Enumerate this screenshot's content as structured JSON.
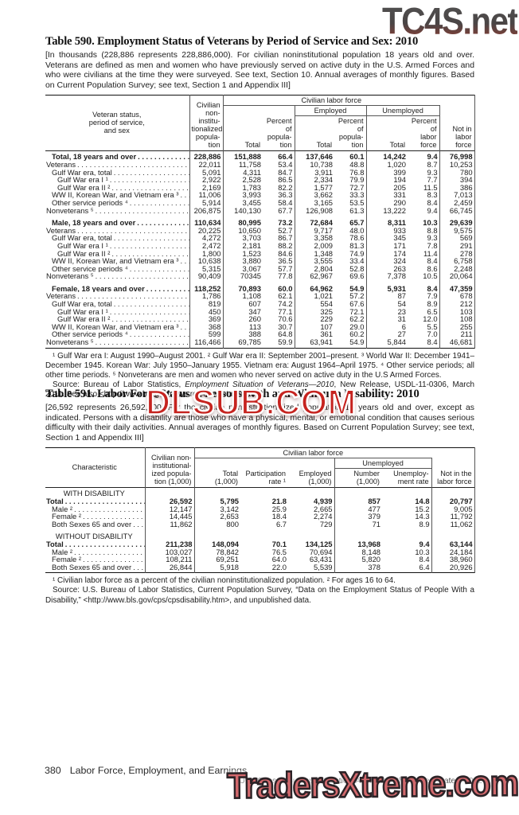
{
  "watermarks": {
    "top": "TC4S.net",
    "middle": "DLSUB.COM",
    "bottom": "TradersXtreme.com"
  },
  "t590": {
    "title": "Table 590. Employment Status of Veterans by Period of Service and Sex: 2010",
    "headnote": "[In thousands (228,886 represents 228,886,000). For civilian noninstitutional population 18 years old and over. Veterans are defined as men and women who have previously served on active duty in the U.S. Armed Forces and who were civilians at the time they were surveyed. See text, Section 10. Annual averages of monthly figures. Based on Current Population Survey; see text, Section 1 and Appendix III]",
    "header": {
      "stub": "Veteran status,\nperiod of service,\nand sex",
      "pop": "Civilian\nnon-\ninstitu-\ntionalized\npopula-\ntion",
      "clf": "Civilian labor force",
      "total": "Total",
      "pct_pop": "Percent\nof\npopula-\ntion",
      "employed": "Employed",
      "emp_total": "Total",
      "emp_pct": "Percent\nof\npopula-\ntion",
      "unemployed": "Unemployed",
      "un_total": "Total",
      "un_pct": "Percent\nof\nlabor\nforce",
      "not_in_lf": "Not in\nlabor\nforce"
    },
    "sections": [
      {
        "rows": [
          {
            "label": "Total, 18 years and over",
            "indent": 1,
            "bold": true,
            "values": [
              "228,886",
              "151,888",
              "66.4",
              "137,646",
              "60.1",
              "14,242",
              "9.4",
              "76,998"
            ]
          },
          {
            "label": "Veterans",
            "indent": 0,
            "values": [
              "22,011",
              "11,758",
              "53.4",
              "10,738",
              "48.8",
              "1,020",
              "8.7",
              "10,253"
            ]
          },
          {
            "label": "Gulf War era, total",
            "indent": 1,
            "values": [
              "5,091",
              "4,311",
              "84.7",
              "3,911",
              "76.8",
              "399",
              "9.3",
              "780"
            ]
          },
          {
            "label": "Gulf War era I ¹",
            "indent": 2,
            "values": [
              "2,922",
              "2,528",
              "86.5",
              "2,334",
              "79.9",
              "194",
              "7.7",
              "394"
            ]
          },
          {
            "label": "Gulf War era II ²",
            "indent": 2,
            "values": [
              "2,169",
              "1,783",
              "82.2",
              "1,577",
              "72.7",
              "205",
              "11.5",
              "386"
            ]
          },
          {
            "label": "WW II, Korean War, and Vietnam era ³",
            "indent": 1,
            "values": [
              "11,006",
              "3,993",
              "36.3",
              "3,662",
              "33.3",
              "331",
              "8.3",
              "7,013"
            ]
          },
          {
            "label": "Other service periods ⁴",
            "indent": 1,
            "values": [
              "5,914",
              "3,455",
              "58.4",
              "3,165",
              "53.5",
              "290",
              "8.4",
              "2,459"
            ]
          },
          {
            "label": "Nonveterans ⁵",
            "indent": 0,
            "values": [
              "206,875",
              "140,130",
              "67.7",
              "126,908",
              "61.3",
              "13,222",
              "9.4",
              "66,745"
            ]
          }
        ]
      },
      {
        "gap": true,
        "rows": [
          {
            "label": "Male, 18 years and over",
            "indent": 1,
            "bold": true,
            "values": [
              "110,634",
              "80,995",
              "73.2",
              "72,684",
              "65.7",
              "8,311",
              "10.3",
              "29,639"
            ]
          },
          {
            "label": "Veterans",
            "indent": 0,
            "values": [
              "20,225",
              "10,650",
              "52.7",
              "9,717",
              "48.0",
              "933",
              "8.8",
              "9,575"
            ]
          },
          {
            "label": "Gulf War era, total",
            "indent": 1,
            "values": [
              "4,272",
              "3,703",
              "86.7",
              "3,358",
              "78.6",
              "345",
              "9.3",
              "569"
            ]
          },
          {
            "label": "Gulf War era I ¹",
            "indent": 2,
            "values": [
              "2,472",
              "2,181",
              "88.2",
              "2,009",
              "81.3",
              "171",
              "7.8",
              "291"
            ]
          },
          {
            "label": "Gulf War era II ²",
            "indent": 2,
            "values": [
              "1,800",
              "1,523",
              "84.6",
              "1,348",
              "74.9",
              "174",
              "11.4",
              "278"
            ]
          },
          {
            "label": "WW II, Korean War, and Vietnam era ³",
            "indent": 1,
            "values": [
              "10,638",
              "3,880",
              "36.5",
              "3,555",
              "33.4",
              "324",
              "8.4",
              "6,758"
            ]
          },
          {
            "label": "Other service periods ⁴",
            "indent": 1,
            "values": [
              "5,315",
              "3,067",
              "57.7",
              "2,804",
              "52.8",
              "263",
              "8.6",
              "2,248"
            ]
          },
          {
            "label": "Nonveterans ⁵",
            "indent": 0,
            "values": [
              "90,409",
              "70345",
              "77.8",
              "62,967",
              "69.6",
              "7,378",
              "10.5",
              "20,064"
            ]
          }
        ]
      },
      {
        "gap": true,
        "rows": [
          {
            "label": "Female, 18 years and over",
            "indent": 1,
            "bold": true,
            "values": [
              "118,252",
              "70,893",
              "60.0",
              "64,962",
              "54.9",
              "5,931",
              "8.4",
              "47,359"
            ]
          },
          {
            "label": "Veterans",
            "indent": 0,
            "values": [
              "1,786",
              "1,108",
              "62.1",
              "1,021",
              "57.2",
              "87",
              "7.9",
              "678"
            ]
          },
          {
            "label": "Gulf War era, total",
            "indent": 1,
            "values": [
              "819",
              "607",
              "74.2",
              "554",
              "67.6",
              "54",
              "8.9",
              "212"
            ]
          },
          {
            "label": "Gulf War era I ¹",
            "indent": 2,
            "values": [
              "450",
              "347",
              "77.1",
              "325",
              "72.1",
              "23",
              "6.5",
              "103"
            ]
          },
          {
            "label": "Gulf War era II ²",
            "indent": 2,
            "values": [
              "369",
              "260",
              "70.6",
              "229",
              "62.2",
              "31",
              "12.0",
              "108"
            ]
          },
          {
            "label": "WW II, Korean War, and Vietnam era ³",
            "indent": 1,
            "values": [
              "368",
              "113",
              "30.7",
              "107",
              "29.0",
              "6",
              "5.5",
              "255"
            ]
          },
          {
            "label": "Other service periods ⁴",
            "indent": 1,
            "values": [
              "599",
              "388",
              "64.8",
              "361",
              "60.2",
              "27",
              "7.0",
              "211"
            ]
          },
          {
            "label": "Nonveterans ⁵",
            "indent": 0,
            "values": [
              "116,466",
              "69,785",
              "59.9",
              "63,941",
              "54.9",
              "5,844",
              "8.4",
              "46,681"
            ]
          }
        ]
      }
    ],
    "footnote": "¹ Gulf War era I: August 1990–August 2001. ² Gulf War era II:  September 2001–present. ³ World War II: December 1941–December 1945. Korean War: July 1950–January 1955. Vietnam era: August 1964–April 1975. ⁴ Other service periods; all other time periods. ⁵ Nonveterans are men and women who never served on active duty in the U.S Armed Forces.",
    "source_pre": "Source: Bureau of Labor Statistics, ",
    "source_italic": "Employment Situation of Veterans—2010",
    "source_post": ", New Release, USDL-11-0306, March 2011. See also <http://www.bls.gov/news.release/vet.nr0.htm>."
  },
  "t591": {
    "title": "Table 591. Labor Force Status of Persons With and Without a Disability: 2010",
    "headnote": "[26,592 represents 26,592,000. For the civilian noninstitutionalized population 16 years old and over, except as indicated. Persons with a disability are those who have a physical, mental, or emotional condition that causes serious difficulty with their daily activities. Annual averages of monthly figures. Based on Current Population Survey; see text, Section 1 and Appendix III]",
    "header": {
      "stub": "Characteristic",
      "pop": "Civilian non-\ninstitutional-\nized popula-\ntion (1,000)",
      "clf": "Civilian labor force",
      "total": "Total\n(1,000)",
      "part_rate": "Participation\nrate ¹",
      "employed": "Employed\n(1,000)",
      "unemployed": "Unemployed",
      "number": "Number\n(1,000)",
      "un_rate": "Unemploy-\nment rate",
      "not_in_lf": "Not in the\nlabor force"
    },
    "sections": [
      {
        "section_label": "WITH DISABILITY",
        "rows": [
          {
            "label": "Total",
            "indent": 0,
            "bold": true,
            "values": [
              "26,592",
              "5,795",
              "21.8",
              "4,939",
              "857",
              "14.8",
              "20,797"
            ]
          },
          {
            "label": "Male ²",
            "indent": 1,
            "values": [
              "12,147",
              "3,142",
              "25.9",
              "2,665",
              "477",
              "15.2",
              "9,005"
            ]
          },
          {
            "label": "Female ²",
            "indent": 1,
            "values": [
              "14,445",
              "2,653",
              "18.4",
              "2,274",
              "379",
              "14.3",
              "11,792"
            ]
          },
          {
            "label": "Both Sexes 65 and over",
            "indent": 1,
            "values": [
              "11,862",
              "800",
              "6.7",
              "729",
              "71",
              "8.9",
              "11,062"
            ]
          }
        ]
      },
      {
        "gap": true,
        "section_label": "WITHOUT DISABILITY",
        "rows": [
          {
            "label": "Total",
            "indent": 0,
            "bold": true,
            "values": [
              "211,238",
              "148,094",
              "70.1",
              "134,125",
              "13,968",
              "9.4",
              "63,144"
            ]
          },
          {
            "label": "Male ²",
            "indent": 1,
            "values": [
              "103,027",
              "78,842",
              "76.5",
              "70,694",
              "8,148",
              "10.3",
              "24,184"
            ]
          },
          {
            "label": "Female ²",
            "indent": 1,
            "values": [
              "108,211",
              "69,251",
              "64.0",
              "63,431",
              "5,820",
              "8.4",
              "38,960"
            ]
          },
          {
            "label": "Both Sexes 65 and over",
            "indent": 1,
            "values": [
              "26,844",
              "5,918",
              "22.0",
              "5,539",
              "378",
              "6.4",
              "20,926"
            ]
          }
        ]
      }
    ],
    "footnote": "¹ Civilian labor force as a percent of the civilian noninstitutionalized population. ² For ages 16 to 64.",
    "source": "Source: U.S. Bureau of Labor Statistics, Current Population Survey, “Data on the Employment Status of People With a Disability,” <http://www.bls.gov/cps/cpsdisability.htm>, and unpublished data."
  },
  "footer": {
    "page_number": "380",
    "section_title": "Labor Force, Employment, and Earnings",
    "census_line": "U.S. Census Bureau, Statistical Abstract of the United States: 2012"
  }
}
